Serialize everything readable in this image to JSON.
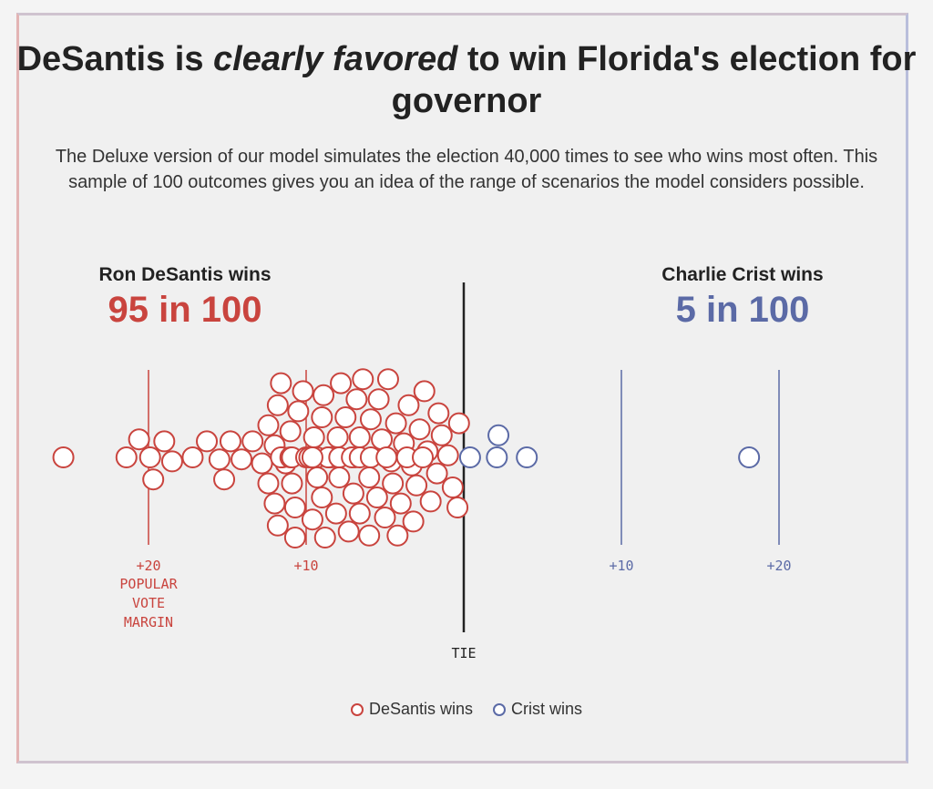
{
  "title": {
    "before": "DeSantis is ",
    "emphasis": "clearly favored",
    "after": " to win Florida's election for governor"
  },
  "subtitle": "The Deluxe version of our model simulates the election 40,000 times to see who wins most often. This sample of 100 outcomes gives you an idea of the range of scenarios the model considers possible.",
  "candidates": {
    "desantis": {
      "label": "Ron DeSantis wins",
      "count": "95 in 100"
    },
    "crist": {
      "label": "Charlie Crist wins",
      "count": "5 in 100"
    }
  },
  "colors": {
    "republican": "#c9443e",
    "democrat": "#5b6aa6",
    "tie_line": "#222222"
  },
  "legend": {
    "desantis": "DeSantis wins",
    "crist": "Crist wins"
  },
  "chart_data": {
    "type": "scatter",
    "subtype": "beeswarm",
    "title": "",
    "xlabel": "POPULAR VOTE MARGIN",
    "axis_range": [
      -25,
      25
    ],
    "ticks": [
      {
        "value": -20,
        "label": "+20",
        "note": "POPULAR VOTE MARGIN",
        "side": "republican"
      },
      {
        "value": -10,
        "label": "+10",
        "side": "republican"
      },
      {
        "value": 0,
        "label": "TIE",
        "side": "tie"
      },
      {
        "value": 10,
        "label": "+10",
        "side": "democrat"
      },
      {
        "value": 20,
        "label": "+20",
        "side": "democrat"
      }
    ],
    "series": [
      {
        "name": "DeSantis wins",
        "color": "#c9443e",
        "values": [
          -25.4,
          -21.4,
          -20.6,
          -19.9,
          -19.7,
          -19.0,
          -18.5,
          -17.2,
          -16.3,
          -15.5,
          -15.2,
          -14.8,
          -14.1,
          -13.4,
          -12.8,
          -12.4,
          -12.0,
          -12.4,
          -12.0,
          -11.8,
          -11.3,
          -11.0,
          -11.8,
          -11.6,
          -11.5,
          -11.6,
          -10.9,
          -10.7,
          -11.0,
          -10.5,
          -10.2,
          -10.7,
          -10.9,
          -10.0,
          -9.5,
          -9.8,
          -9.3,
          -9.6,
          -9.0,
          -9.0,
          -8.9,
          -9.3,
          -8.8,
          -8.6,
          -8.4,
          -8.6,
          -8.0,
          -8.1,
          -7.9,
          -7.5,
          -7.8,
          -7.9,
          -7.3,
          -7.0,
          -6.9,
          -7.1,
          -6.6,
          -6.8,
          -6.6,
          -6.4,
          -6.6,
          -6.0,
          -5.9,
          -6.0,
          -5.5,
          -5.9,
          -5.4,
          -5.2,
          -5.0,
          -4.8,
          -4.6,
          -4.5,
          -4.9,
          -4.3,
          -4.0,
          -3.8,
          -4.2,
          -3.5,
          -3.3,
          -3.6,
          -3.0,
          -3.2,
          -2.8,
          -2.5,
          -2.3,
          -2.6,
          -2.1,
          -1.7,
          -1.4,
          -1.6,
          -1.0,
          -0.7,
          -0.4,
          -0.3,
          -9.6
        ]
      },
      {
        "name": "Crist wins",
        "color": "#5b6aa6",
        "values": [
          0.4,
          2.1,
          2.2,
          4.0,
          18.1
        ]
      }
    ],
    "grid": false,
    "legend_position": "bottom-center"
  }
}
